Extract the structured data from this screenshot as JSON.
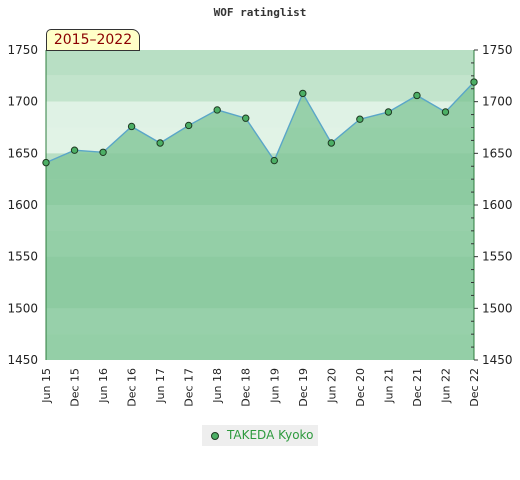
{
  "header": {
    "title": "WOF ratinglist"
  },
  "range_label": "2015–2022",
  "legend": {
    "label": "TAKEDA Kyoko"
  },
  "colors": {
    "line": "#5aa6c8",
    "point_fill": "#4caf65",
    "point_stroke": "#1e3a22",
    "area_fill": "#7fc495",
    "legend_text": "#2e9a3e",
    "badge_text": "#8b0000"
  },
  "chart_data": {
    "type": "area",
    "title": "WOF ratinglist",
    "xlabel": "",
    "ylabel": "",
    "ylim": [
      1450,
      1750
    ],
    "yticks": [
      1450,
      1500,
      1550,
      1600,
      1650,
      1700,
      1750
    ],
    "grid": true,
    "legend_position": "bottom",
    "categories": [
      "Jun 15",
      "Dec 15",
      "Jun 16",
      "Dec 16",
      "Jun 17",
      "Dec 17",
      "Jun 18",
      "Dec 18",
      "Jun 19",
      "Dec 19",
      "Jun 20",
      "Dec 20",
      "Jun 21",
      "Dec 21",
      "Jun 22",
      "Dec 22"
    ],
    "series": [
      {
        "name": "TAKEDA Kyoko",
        "values": [
          1641,
          1653,
          1651,
          1676,
          1660,
          1677,
          1692,
          1684,
          1643,
          1708,
          1660,
          1683,
          1690,
          1706,
          1690,
          1719
        ]
      }
    ]
  }
}
